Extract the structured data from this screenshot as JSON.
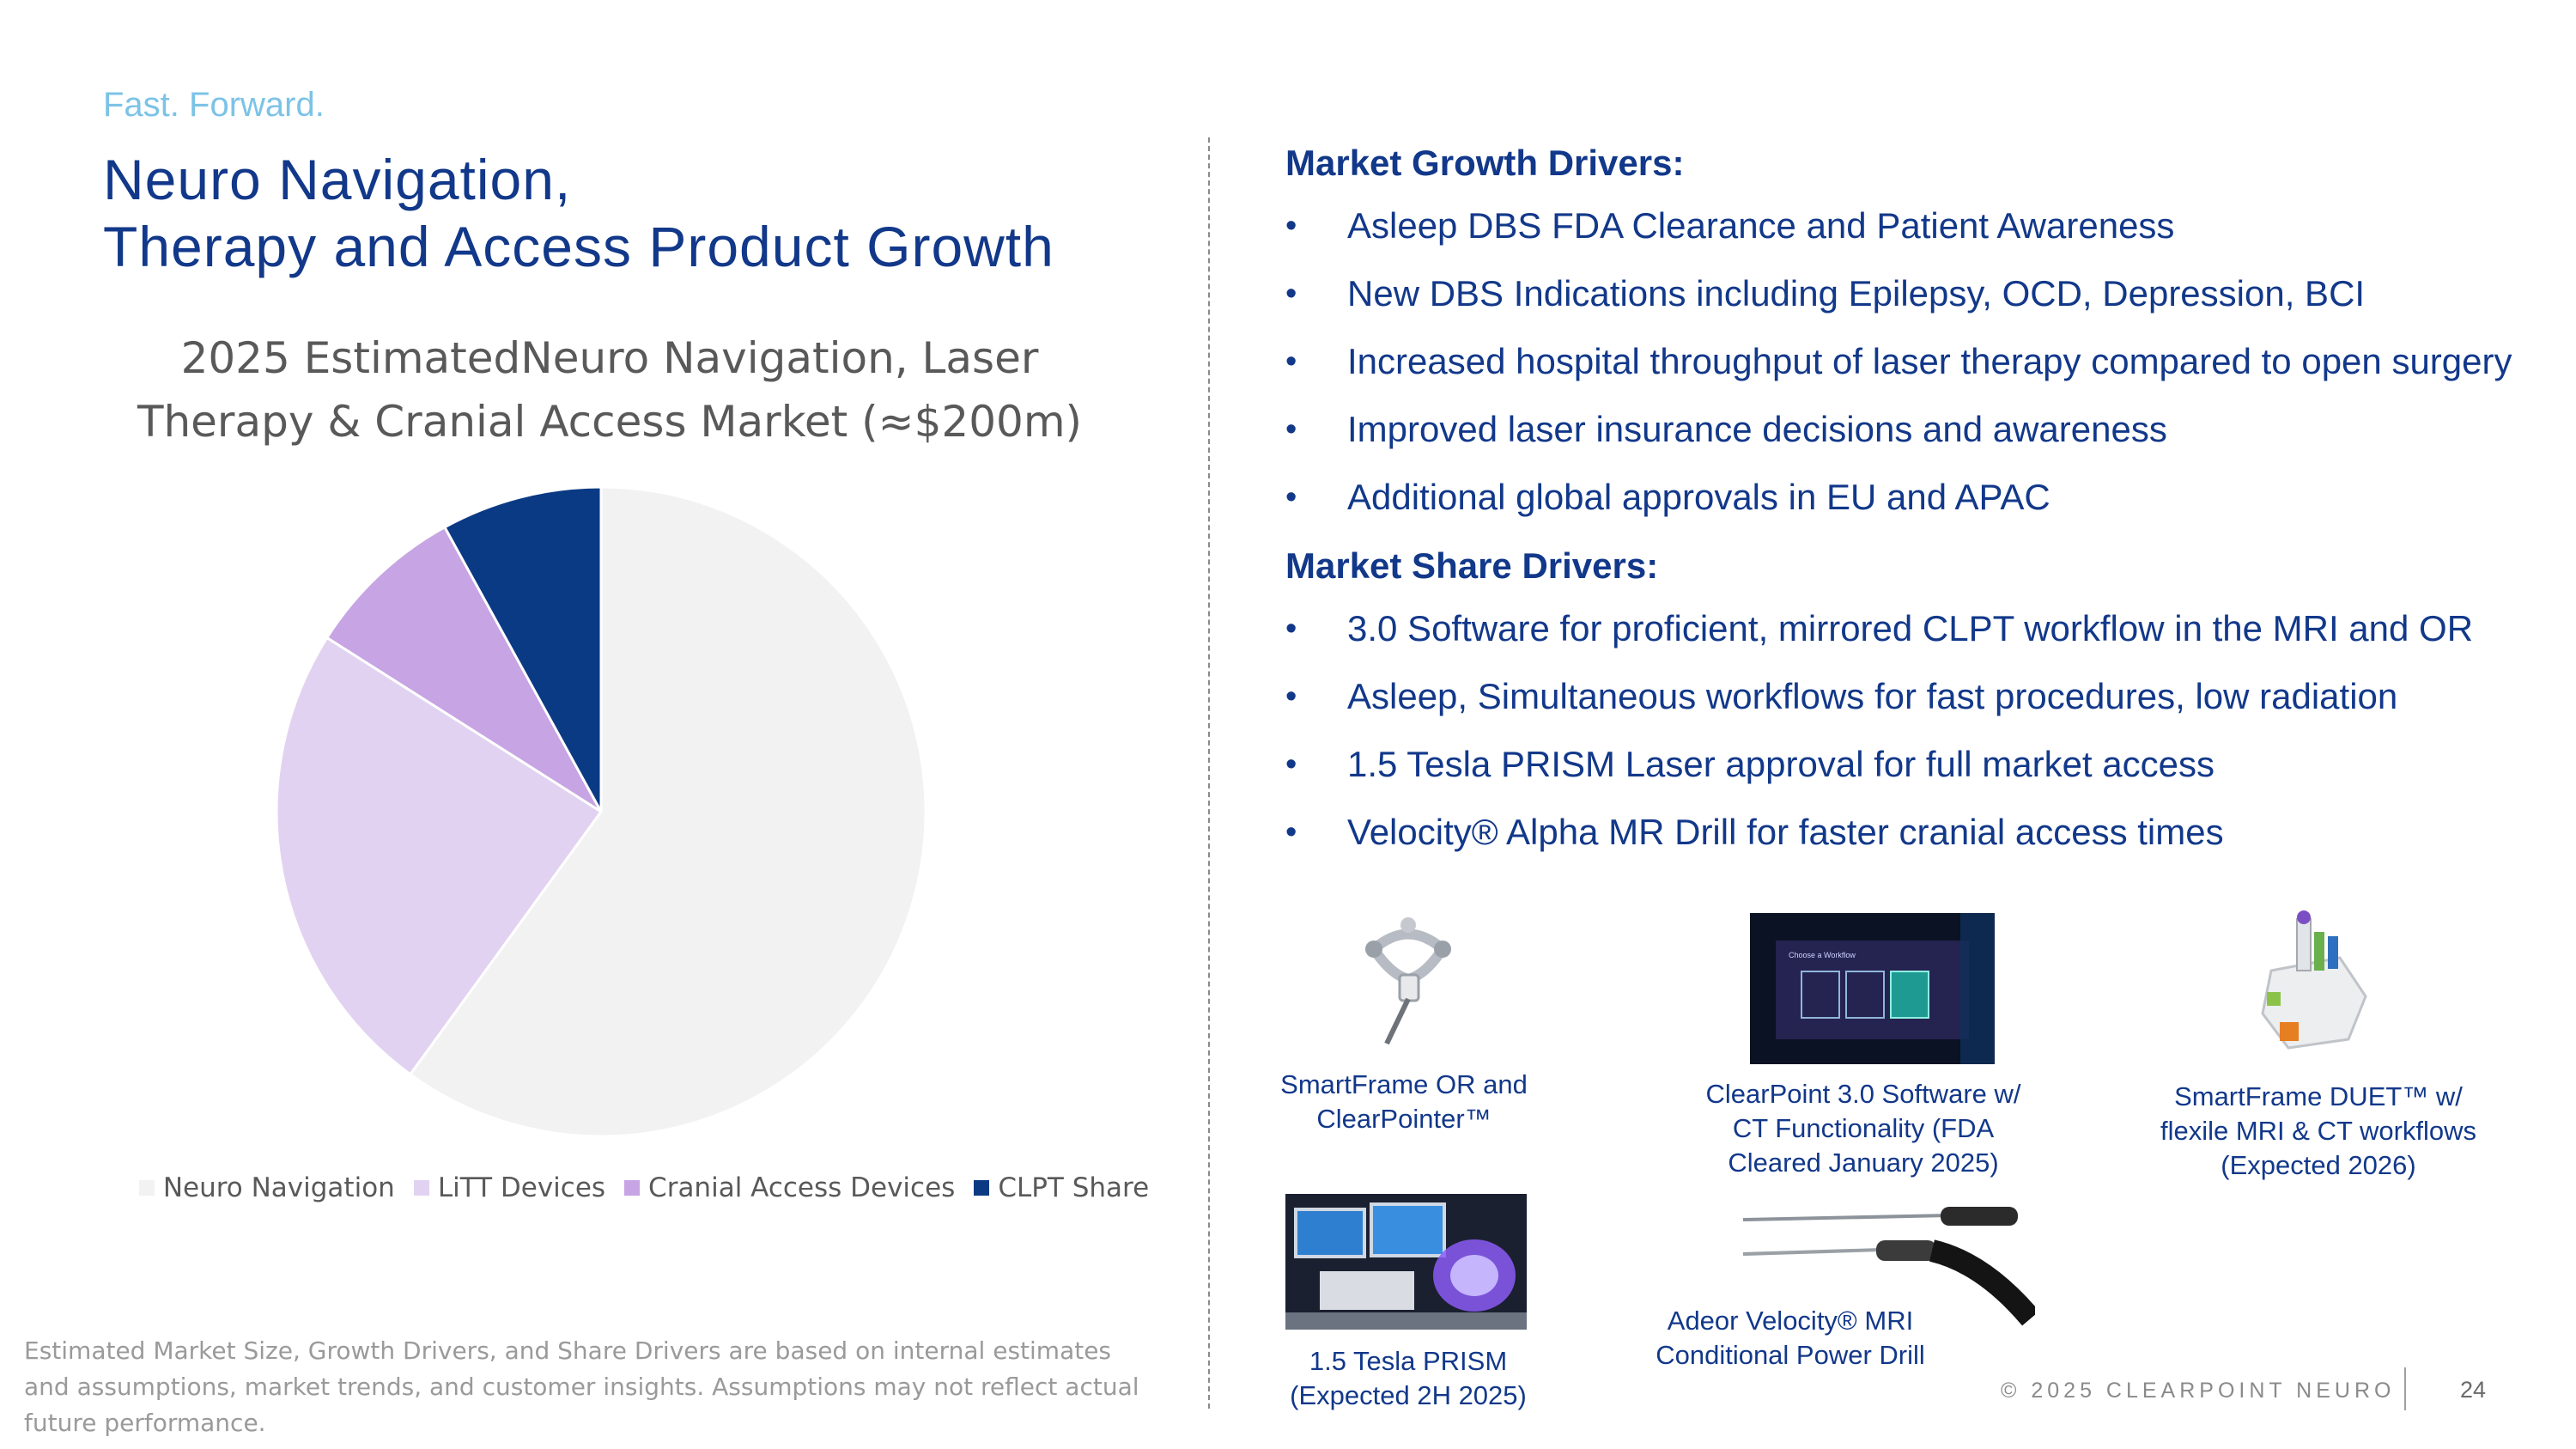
{
  "slide": {
    "tagline": "Fast. Forward.",
    "title_line1": "Neuro Navigation,",
    "title_line2": "Therapy and Access Product Growth"
  },
  "chart_data": {
    "type": "pie",
    "title": "2025 EstimatedNeuro Navigation, Laser Therapy & Cranial Access Market (≈$200m)",
    "categories": [
      "Neuro Navigation",
      "LiTT Devices",
      "Cranial Access Devices",
      "CLPT Share"
    ],
    "values": [
      60,
      24,
      8,
      8
    ],
    "colors": [
      "#f2f2f2",
      "#e2d2f1",
      "#c7a4e3",
      "#0b3a84"
    ],
    "legend_position": "bottom"
  },
  "growth": {
    "heading": "Market Growth Drivers:",
    "items": [
      "Asleep DBS FDA Clearance and Patient Awareness",
      "New DBS Indications including Epilepsy, OCD, Depression, BCI",
      "Increased hospital throughput of laser therapy compared to open surgery",
      "Improved laser insurance decisions and awareness",
      "Additional global approvals in EU and APAC"
    ]
  },
  "share": {
    "heading": "Market Share Drivers:",
    "items": [
      "3.0 Software for proficient, mirrored CLPT workflow in the MRI and OR",
      "Asleep, Simultaneous workflows for fast procedures, low radiation",
      "1.5 Tesla PRISM Laser approval for full market access",
      "Velocity® Alpha MR Drill for faster cranial access times"
    ]
  },
  "bullet_char": "•",
  "products": {
    "smartframe_or": "SmartFrame OR and ClearPointer™",
    "clearpoint_sw": "ClearPoint 3.0 Software w/ CT Functionality (FDA Cleared January 2025)",
    "duet": "SmartFrame DUET™ w/ flexile MRI & CT workflows (Expected 2026)",
    "prism": "1.5 Tesla PRISM (Expected 2H 2025)",
    "drill": "Adeor Velocity® MRI Conditional Power Drill",
    "software_screen_text": "Choose a Workflow"
  },
  "footer": {
    "footnote": "Estimated Market Size, Growth Drivers, and Share Drivers are based on internal estimates and assumptions, market trends, and customer insights.  Assumptions may not reflect actual future performance.",
    "copyright": "© 2025 CLEARPOINT NEURO",
    "page": "24"
  }
}
